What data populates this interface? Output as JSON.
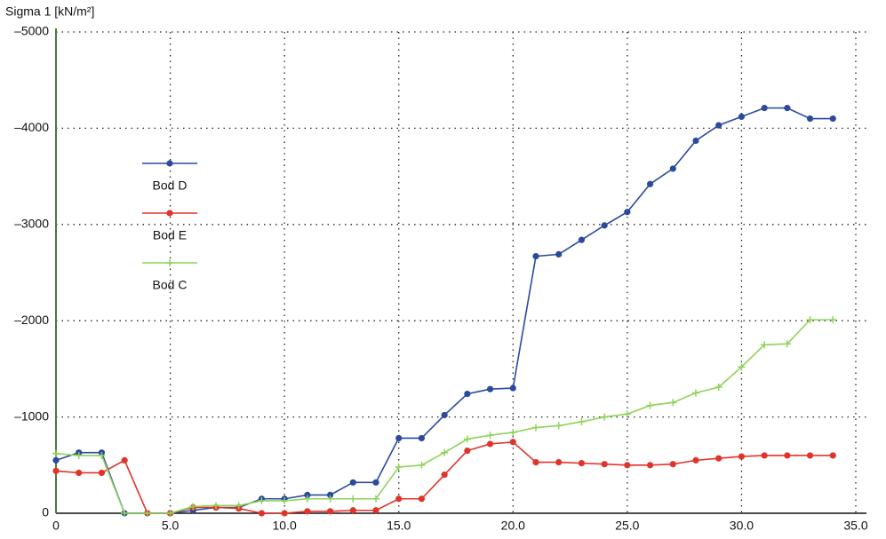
{
  "chart_data": {
    "type": "line",
    "y_label": "Sigma 1 [kN/m²]",
    "x": [
      0,
      1,
      2,
      3,
      4,
      5,
      6,
      7,
      8,
      9,
      10,
      11,
      12,
      13,
      14,
      15,
      16,
      17,
      18,
      19,
      20,
      21,
      22,
      23,
      24,
      25,
      26,
      27,
      28,
      29,
      30,
      31,
      32,
      33,
      34
    ],
    "series": [
      {
        "name": "Bod D",
        "color": "#2b4a9e",
        "marker": "circle",
        "values": [
          -550,
          -630,
          -630,
          0,
          0,
          0,
          -30,
          -60,
          -60,
          -150,
          -150,
          -190,
          -190,
          -320,
          -320,
          -780,
          -780,
          -1020,
          -1240,
          -1290,
          -1300,
          -2670,
          -2690,
          -2840,
          -2990,
          -3130,
          -3420,
          -3580,
          -3870,
          -4030,
          -4120,
          -4210,
          -4210,
          -4100,
          -4100
        ]
      },
      {
        "name": "Bod E",
        "color": "#e0342a",
        "marker": "circle",
        "values": [
          -440,
          -420,
          -420,
          -550,
          0,
          0,
          -60,
          -60,
          -50,
          0,
          0,
          -20,
          -20,
          -30,
          -30,
          -150,
          -150,
          -400,
          -650,
          -720,
          -740,
          -530,
          -530,
          -520,
          -510,
          -500,
          -500,
          -510,
          -550,
          -570,
          -590,
          -600,
          -600,
          -600,
          -600
        ]
      },
      {
        "name": "Bod C",
        "color": "#8fd25a",
        "marker": "plus",
        "values": [
          -620,
          -600,
          -600,
          0,
          0,
          0,
          -70,
          -80,
          -80,
          -130,
          -130,
          -150,
          -150,
          -150,
          -150,
          -480,
          -500,
          -630,
          -770,
          -810,
          -840,
          -890,
          -910,
          -950,
          -1000,
          -1030,
          -1120,
          -1150,
          -1250,
          -1310,
          -1520,
          -1750,
          -1760,
          -2010,
          -2010
        ]
      }
    ],
    "xlim": [
      0,
      35
    ],
    "xticks": [
      0,
      {
        "value": 5,
        "label": "5.0"
      },
      {
        "value": 10,
        "label": "10.0"
      },
      {
        "value": 15,
        "label": "15.0"
      },
      {
        "value": 20,
        "label": "20.0"
      },
      {
        "value": 25,
        "label": "25.0"
      },
      {
        "value": 30,
        "label": "30.0"
      },
      {
        "value": 35,
        "label": "35.0"
      }
    ],
    "ylim": [
      0,
      -5000
    ],
    "yticks": [
      0,
      {
        "value": -1000,
        "label": "–1000"
      },
      {
        "value": -2000,
        "label": "–2000"
      },
      {
        "value": -3000,
        "label": "–3000"
      },
      {
        "value": -4000,
        "label": "–4000"
      },
      {
        "value": -5000,
        "label": "–5000"
      }
    ],
    "grid": true
  }
}
